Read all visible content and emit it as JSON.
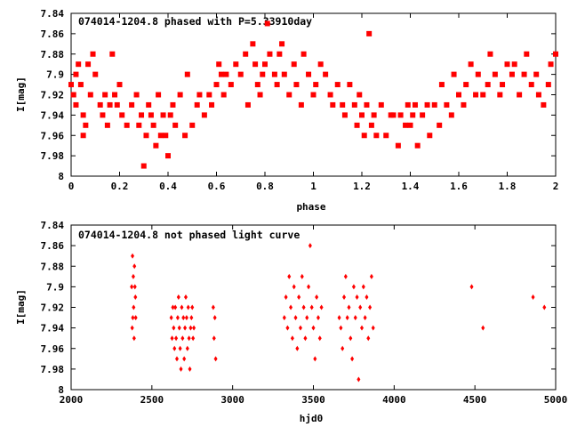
{
  "chart_data": [
    {
      "type": "scatter",
      "title": "074014-1204.8 phased with P=5.33910day",
      "xlabel": "phase",
      "ylabel": "I[mag]",
      "xlim": [
        0,
        2
      ],
      "ylim": [
        7.84,
        8.0
      ],
      "y_inverted": true,
      "xticks": [
        "0",
        "0.2",
        "0.4",
        "0.6",
        "0.8",
        "1",
        "1.2",
        "1.4",
        "1.6",
        "1.8",
        "2"
      ],
      "yticks": [
        "7.84",
        "7.86",
        "7.88",
        "7.9",
        "7.92",
        "7.94",
        "7.96",
        "7.98",
        "8"
      ],
      "marker": "filled-square",
      "color": "#ff0000",
      "series": [
        {
          "x": [
            0.0,
            0.01,
            0.02,
            0.02,
            0.03,
            0.04,
            0.05,
            0.05,
            0.06,
            0.07,
            0.08,
            0.09,
            0.1,
            0.12,
            0.13,
            0.14,
            0.15,
            0.16,
            0.17,
            0.18,
            0.19,
            0.2,
            0.21,
            0.23,
            0.25,
            0.27,
            0.28,
            0.29,
            0.3,
            0.31,
            0.32,
            0.33,
            0.34,
            0.35,
            0.36,
            0.37,
            0.38,
            0.39,
            0.4,
            0.41,
            0.42,
            0.43,
            0.45,
            0.47,
            0.48,
            0.5,
            0.52,
            0.53,
            0.55,
            0.57,
            0.58,
            0.6,
            0.61,
            0.62,
            0.63,
            0.64,
            0.66,
            0.68,
            0.7,
            0.72,
            0.73,
            0.75,
            0.76,
            0.77,
            0.78,
            0.79,
            0.8,
            0.81,
            0.82,
            0.84,
            0.85,
            0.86,
            0.87,
            0.88,
            0.9,
            0.92,
            0.93,
            0.95,
            0.96,
            0.98,
            1.0,
            1.01,
            1.03,
            1.05,
            1.07,
            1.08,
            1.1,
            1.12,
            1.13,
            1.15,
            1.17,
            1.18,
            1.19,
            1.2,
            1.21,
            1.22,
            1.23,
            1.24,
            1.25,
            1.26,
            1.28,
            1.3,
            1.32,
            1.33,
            1.35,
            1.36,
            1.38,
            1.39,
            1.4,
            1.41,
            1.42,
            1.43,
            1.45,
            1.47,
            1.48,
            1.5,
            1.52,
            1.53,
            1.55,
            1.57,
            1.58,
            1.6,
            1.62,
            1.63,
            1.65,
            1.67,
            1.68,
            1.7,
            1.72,
            1.73,
            1.75,
            1.77,
            1.78,
            1.8,
            1.82,
            1.83,
            1.85,
            1.87,
            1.88,
            1.9,
            1.92,
            1.93,
            1.95,
            1.97,
            1.98,
            2.0
          ],
          "y": [
            7.91,
            7.92,
            7.9,
            7.93,
            7.89,
            7.91,
            7.94,
            7.96,
            7.95,
            7.89,
            7.92,
            7.88,
            7.9,
            7.93,
            7.94,
            7.92,
            7.95,
            7.93,
            7.88,
            7.92,
            7.93,
            7.91,
            7.94,
            7.95,
            7.93,
            7.92,
            7.95,
            7.94,
            7.99,
            7.96,
            7.93,
            7.94,
            7.95,
            7.97,
            7.92,
            7.96,
            7.94,
            7.96,
            7.98,
            7.94,
            7.93,
            7.95,
            7.92,
            7.96,
            7.9,
            7.95,
            7.93,
            7.92,
            7.94,
            7.92,
            7.93,
            7.91,
            7.89,
            7.9,
            7.92,
            7.9,
            7.91,
            7.89,
            7.9,
            7.88,
            7.93,
            7.87,
            7.89,
            7.91,
            7.92,
            7.9,
            7.89,
            7.85,
            7.88,
            7.9,
            7.91,
            7.88,
            7.87,
            7.9,
            7.92,
            7.89,
            7.91,
            7.93,
            7.88,
            7.9,
            7.92,
            7.91,
            7.89,
            7.9,
            7.92,
            7.93,
            7.91,
            7.93,
            7.94,
            7.91,
            7.93,
            7.95,
            7.92,
            7.94,
            7.96,
            7.93,
            7.86,
            7.95,
            7.94,
            7.96,
            7.93,
            7.96,
            7.94,
            7.94,
            7.97,
            7.94,
            7.95,
            7.93,
            7.95,
            7.94,
            7.93,
            7.97,
            7.94,
            7.93,
            7.96,
            7.93,
            7.95,
            7.91,
            7.93,
            7.94,
            7.9,
            7.92,
            7.93,
            7.91,
            7.89,
            7.92,
            7.9,
            7.92,
            7.91,
            7.88,
            7.9,
            7.92,
            7.91,
            7.89,
            7.9,
            7.89,
            7.92,
            7.9,
            7.88,
            7.91,
            7.9,
            7.92,
            7.93,
            7.91,
            7.89,
            7.88
          ]
        }
      ]
    },
    {
      "type": "scatter",
      "title": "074014-1204.8 not phased light curve",
      "xlabel": "hjd0",
      "ylabel": "I[mag]",
      "xlim": [
        2000,
        5000
      ],
      "ylim": [
        7.84,
        8.0
      ],
      "y_inverted": true,
      "xticks": [
        "2000",
        "2500",
        "3000",
        "3500",
        "4000",
        "4500",
        "5000"
      ],
      "yticks": [
        "7.84",
        "7.86",
        "7.88",
        "7.9",
        "7.92",
        "7.94",
        "7.96",
        "7.98",
        "8"
      ],
      "marker": "small-diamond",
      "color": "#ff0000",
      "series": [
        {
          "x": [
            2375,
            2378,
            2380,
            2382,
            2385,
            2387,
            2390,
            2392,
            2395,
            2398,
            2400,
            2620,
            2625,
            2630,
            2635,
            2640,
            2645,
            2650,
            2655,
            2660,
            2665,
            2670,
            2675,
            2680,
            2685,
            2690,
            2695,
            2700,
            2705,
            2710,
            2715,
            2720,
            2725,
            2730,
            2735,
            2740,
            2745,
            2750,
            2755,
            2760,
            2880,
            2885,
            2890,
            2895,
            3320,
            3330,
            3340,
            3350,
            3360,
            3370,
            3380,
            3390,
            3400,
            3410,
            3420,
            3430,
            3440,
            3450,
            3460,
            3470,
            3480,
            3490,
            3500,
            3510,
            3520,
            3530,
            3540,
            3550,
            3660,
            3670,
            3680,
            3690,
            3700,
            3710,
            3720,
            3730,
            3740,
            3750,
            3760,
            3770,
            3780,
            3790,
            3800,
            3810,
            3820,
            3830,
            3840,
            3850,
            3860,
            3870,
            4480,
            4550,
            4860,
            4930
          ],
          "y": [
            7.9,
            7.94,
            7.87,
            7.93,
            7.89,
            7.92,
            7.95,
            7.88,
            7.9,
            7.91,
            7.93,
            7.93,
            7.95,
            7.92,
            7.94,
            7.96,
            7.92,
            7.95,
            7.97,
            7.93,
            7.91,
            7.94,
            7.96,
            7.98,
            7.92,
            7.95,
            7.93,
            7.97,
            7.94,
            7.91,
            7.93,
            7.96,
            7.92,
            7.95,
            7.98,
            7.94,
            7.93,
            7.92,
            7.95,
            7.94,
            7.92,
            7.95,
            7.93,
            7.97,
            7.93,
            7.91,
            7.94,
            7.89,
            7.92,
            7.95,
            7.9,
            7.93,
            7.96,
            7.91,
            7.94,
            7.89,
            7.92,
            7.95,
            7.93,
            7.9,
            7.86,
            7.92,
            7.94,
            7.97,
            7.91,
            7.93,
            7.95,
            7.92,
            7.93,
            7.94,
            7.96,
            7.91,
            7.89,
            7.93,
            7.92,
            7.95,
            7.97,
            7.9,
            7.93,
            7.91,
            7.99,
            7.92,
            7.94,
            7.9,
            7.93,
            7.91,
            7.95,
            7.92,
            7.89,
            7.94,
            7.9,
            7.94,
            7.91,
            7.92
          ]
        }
      ]
    }
  ]
}
